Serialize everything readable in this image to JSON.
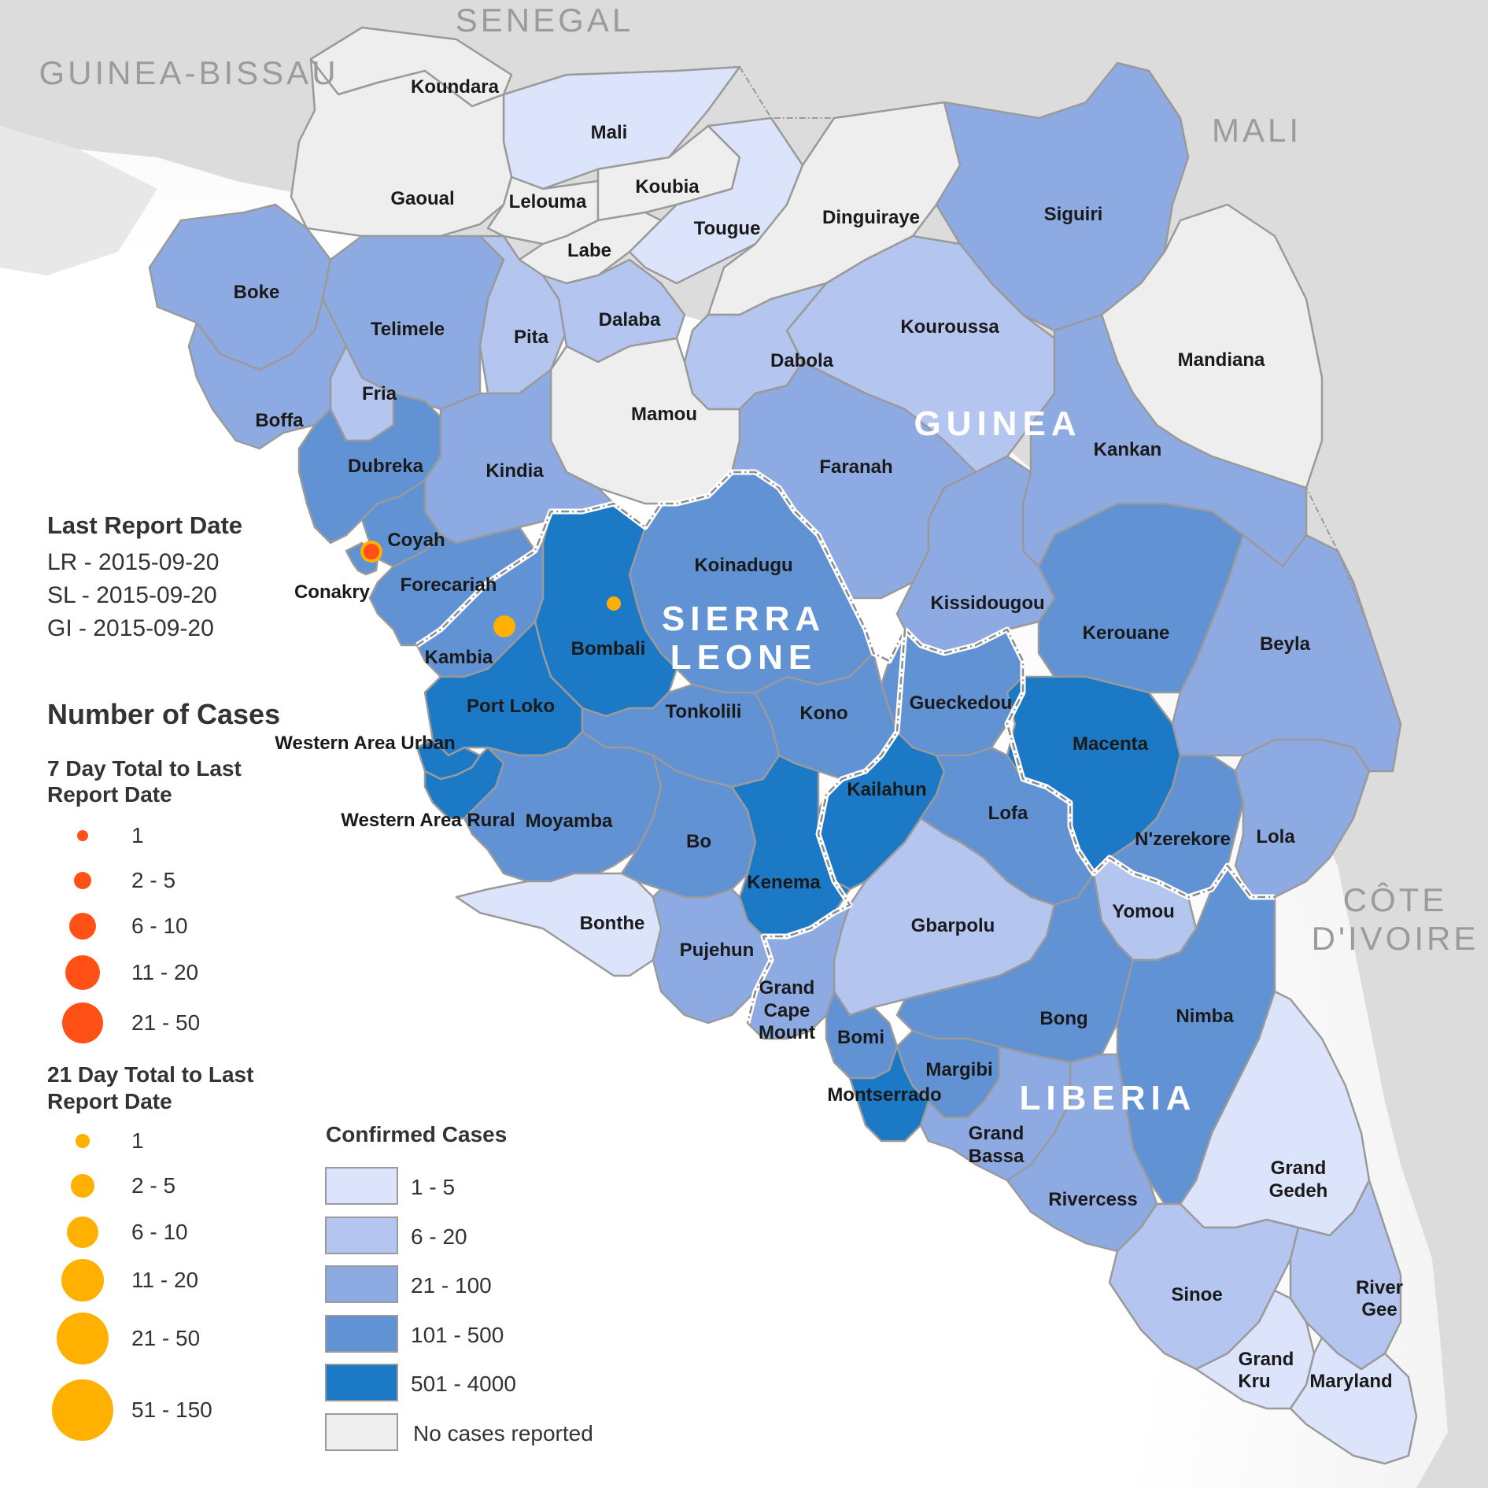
{
  "colors": {
    "no_cases": "#eeeeee",
    "1-5": "#dbe4fa",
    "6-20": "#b4c6ef",
    "21-100": "#8eaae2",
    "101-500": "#6192d4",
    "501-4000": "#1b79c6",
    "seven_day_marker": "#ff5016",
    "twenty_one_day_marker": "#ffb000",
    "background_land": "#dcdcdc"
  },
  "neighbor_countries": [
    "SENEGAL",
    "GUINEA-BISSAU",
    "MALI",
    "CÔTE",
    "D'IVOIRE"
  ],
  "affected_countries": [
    "GUINEA",
    "SIERRA",
    "LEONE",
    "LIBERIA"
  ],
  "districts": [
    {
      "name": "Koundara",
      "class": "no_cases"
    },
    {
      "name": "Mali",
      "class": "1-5"
    },
    {
      "name": "Gaoual",
      "class": "no_cases"
    },
    {
      "name": "Lelouma",
      "class": "no_cases"
    },
    {
      "name": "Koubia",
      "class": "no_cases"
    },
    {
      "name": "Tougue",
      "class": "1-5"
    },
    {
      "name": "Labe",
      "class": "no_cases"
    },
    {
      "name": "Dinguiraye",
      "class": "no_cases"
    },
    {
      "name": "Siguiri",
      "class": "21-100"
    },
    {
      "name": "Boke",
      "class": "21-100"
    },
    {
      "name": "Telimele",
      "class": "21-100"
    },
    {
      "name": "Pita",
      "class": "6-20"
    },
    {
      "name": "Dalaba",
      "class": "6-20"
    },
    {
      "name": "Kouroussa",
      "class": "6-20"
    },
    {
      "name": "Dabola",
      "class": "6-20"
    },
    {
      "name": "Mandiana",
      "class": "no_cases"
    },
    {
      "name": "Fria",
      "class": "6-20"
    },
    {
      "name": "Boffa",
      "class": "21-100"
    },
    {
      "name": "Mamou",
      "class": "no_cases"
    },
    {
      "name": "Kankan",
      "class": "21-100"
    },
    {
      "name": "Dubreka",
      "class": "101-500"
    },
    {
      "name": "Kindia",
      "class": "21-100"
    },
    {
      "name": "Faranah",
      "class": "21-100"
    },
    {
      "name": "Coyah",
      "class": "101-500"
    },
    {
      "name": "Conakry",
      "class": "101-500"
    },
    {
      "name": "Forecariah",
      "class": "101-500"
    },
    {
      "name": "Koinadugu",
      "class": "101-500"
    },
    {
      "name": "Kissidougou",
      "class": "21-100"
    },
    {
      "name": "Kerouane",
      "class": "101-500"
    },
    {
      "name": "Beyla",
      "class": "21-100"
    },
    {
      "name": "Bombali",
      "class": "501-4000"
    },
    {
      "name": "Kambia",
      "class": "101-500"
    },
    {
      "name": "Port Loko",
      "class": "501-4000"
    },
    {
      "name": "Tonkolili",
      "class": "101-500"
    },
    {
      "name": "Kono",
      "class": "101-500"
    },
    {
      "name": "Gueckedou",
      "class": "101-500"
    },
    {
      "name": "Macenta",
      "class": "501-4000"
    },
    {
      "name": "Western Area Urban",
      "class": "501-4000"
    },
    {
      "name": "Western Area Rural",
      "class": "501-4000"
    },
    {
      "name": "Moyamba",
      "class": "101-500"
    },
    {
      "name": "Bo",
      "class": "101-500"
    },
    {
      "name": "Kailahun",
      "class": "501-4000"
    },
    {
      "name": "Lofa",
      "class": "101-500"
    },
    {
      "name": "N'zerekore",
      "class": "101-500"
    },
    {
      "name": "Lola",
      "class": "21-100"
    },
    {
      "name": "Kenema",
      "class": "501-4000"
    },
    {
      "name": "Bonthe",
      "class": "1-5"
    },
    {
      "name": "Gbarpolu",
      "class": "6-20"
    },
    {
      "name": "Yomou",
      "class": "6-20"
    },
    {
      "name": "Pujehun",
      "class": "21-100"
    },
    {
      "name": "Grand Cape Mount",
      "class": "21-100"
    },
    {
      "name": "Bomi",
      "class": "101-500"
    },
    {
      "name": "Bong",
      "class": "101-500"
    },
    {
      "name": "Nimba",
      "class": "101-500"
    },
    {
      "name": "Margibi",
      "class": "101-500"
    },
    {
      "name": "Montserrado",
      "class": "501-4000"
    },
    {
      "name": "Grand Bassa",
      "class": "21-100"
    },
    {
      "name": "Rivercess",
      "class": "21-100"
    },
    {
      "name": "Grand Gedeh",
      "class": "1-5"
    },
    {
      "name": "Sinoe",
      "class": "6-20"
    },
    {
      "name": "River Gee",
      "class": "6-20"
    },
    {
      "name": "Grand Kru",
      "class": "1-5"
    },
    {
      "name": "Maryland",
      "class": "1-5"
    }
  ],
  "report_markers": [
    {
      "district": "Conakry",
      "period": "7 Day",
      "range": "2 - 5"
    },
    {
      "district": "Conakry",
      "period": "21 Day",
      "range": "6 - 10"
    },
    {
      "district": "Kambia",
      "period": "21 Day",
      "range": "2 - 5"
    },
    {
      "district": "Bombali",
      "period": "21 Day",
      "range": "1"
    }
  ],
  "legend": {
    "last_report_title": "Last Report Date",
    "last_report_lines": [
      "LR - 2015-09-20",
      "SL - 2015-09-20",
      "GI - 2015-09-20"
    ],
    "number_of_cases": "Number of Cases",
    "seven_day_title": [
      "7 Day Total to Last",
      "Report Date"
    ],
    "seven_day_items": [
      "1",
      "2 - 5",
      "6 - 10",
      "11 - 20",
      "21 - 50"
    ],
    "twenty_one_day_title": [
      "21 Day Total to Last",
      "Report Date"
    ],
    "twenty_one_day_items": [
      "1",
      "2 - 5",
      "6 - 10",
      "11 - 20",
      "21 - 50",
      "51 - 150"
    ],
    "confirmed_title": "Confirmed Cases",
    "confirmed_items": [
      {
        "label": "1 - 5",
        "class": "1-5"
      },
      {
        "label": "6 - 20",
        "class": "6-20"
      },
      {
        "label": "21 - 100",
        "class": "21-100"
      },
      {
        "label": "101 - 500",
        "class": "101-500"
      },
      {
        "label": "501 - 4000",
        "class": "501-4000"
      },
      {
        "label": "No cases reported",
        "class": "no_cases"
      }
    ]
  }
}
